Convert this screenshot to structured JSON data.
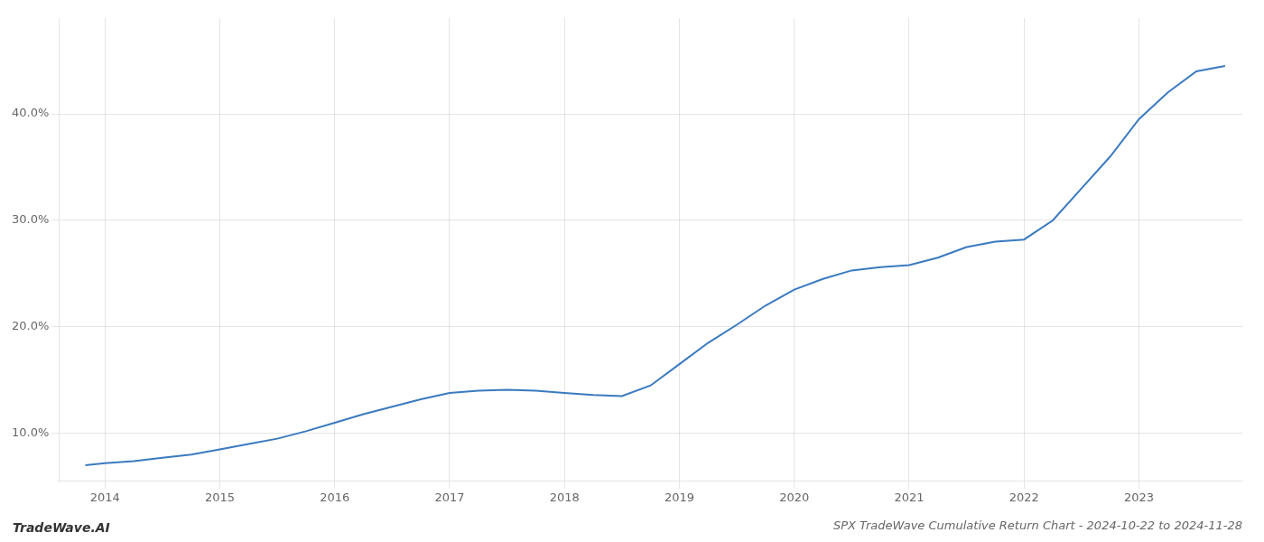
{
  "chart_data": {
    "type": "line",
    "title": "SPX TradeWave Cumulative Return Chart - 2024-10-22 to 2024-11-28",
    "annotations": [
      "TradeWave.AI"
    ],
    "x": [
      2013.83,
      2014.0,
      2014.25,
      2014.5,
      2014.75,
      2015.0,
      2015.25,
      2015.5,
      2015.75,
      2016.0,
      2016.25,
      2016.5,
      2016.75,
      2017.0,
      2017.25,
      2017.5,
      2017.75,
      2018.0,
      2018.25,
      2018.5,
      2018.75,
      2019.0,
      2019.25,
      2019.5,
      2019.75,
      2020.0,
      2020.25,
      2020.5,
      2020.75,
      2021.0,
      2021.25,
      2021.5,
      2021.75,
      2022.0,
      2022.25,
      2022.5,
      2022.75,
      2023.0,
      2023.25,
      2023.5,
      2023.75
    ],
    "values": [
      7.0,
      7.2,
      7.4,
      7.7,
      8.0,
      8.5,
      9.0,
      9.5,
      10.2,
      11.0,
      11.8,
      12.5,
      13.2,
      13.8,
      14.0,
      14.1,
      14.0,
      13.8,
      13.6,
      13.5,
      14.5,
      16.5,
      18.5,
      20.2,
      22.0,
      23.5,
      24.5,
      25.3,
      25.6,
      25.8,
      26.5,
      27.5,
      28.0,
      28.2,
      30.0,
      33.0,
      36.0,
      39.5,
      42.0,
      44.0,
      44.5
    ],
    "color": "#3a7abf",
    "xlim": [
      2013.6,
      2023.9
    ],
    "ylim": [
      5.5,
      49.0
    ],
    "xticks": [
      2014,
      2015,
      2016,
      2017,
      2018,
      2019,
      2020,
      2021,
      2022,
      2023
    ],
    "yticks": [
      {
        "value": 10.0,
        "label": "10.0%"
      },
      {
        "value": 20.0,
        "label": "20.0%"
      },
      {
        "value": 30.0,
        "label": "30.0%"
      },
      {
        "value": 40.0,
        "label": "40.0%"
      }
    ],
    "grid": true
  }
}
